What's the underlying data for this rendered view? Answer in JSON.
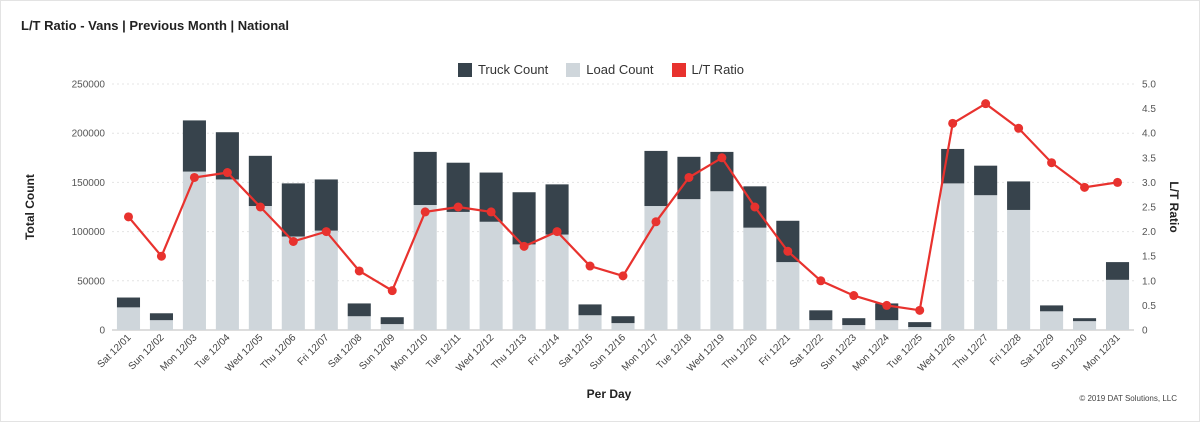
{
  "title": "L/T Ratio - Vans | Previous Month | National",
  "credit": "© 2019 DAT Solutions, LLC",
  "colors": {
    "truck": "#37434c",
    "load": "#cfd6db",
    "ratio": "#e8322e"
  },
  "chart_data": {
    "type": "bar",
    "stacked": true,
    "xlabel": "Per Day",
    "ylabel": "Total Count",
    "y2label": "L/T Ratio",
    "ylim": [
      0,
      250000
    ],
    "y2lim": [
      0,
      5
    ],
    "yticks": [
      "0",
      "50000",
      "100000",
      "150000",
      "200000",
      "250000"
    ],
    "y2ticks": [
      "0",
      "0.5",
      "1.0",
      "1.5",
      "2.0",
      "2.5",
      "3.0",
      "3.5",
      "4.0",
      "4.5",
      "5.0"
    ],
    "legend_position": "top-center",
    "grid": true,
    "categories": [
      "Sat 12/01",
      "Sun 12/02",
      "Mon 12/03",
      "Tue 12/04",
      "Wed 12/05",
      "Thu 12/06",
      "Fri 12/07",
      "Sat 12/08",
      "Sun 12/09",
      "Mon 12/10",
      "Tue 12/11",
      "Wed 12/12",
      "Thu 12/13",
      "Fri 12/14",
      "Sat 12/15",
      "Sun 12/16",
      "Mon 12/17",
      "Tue 12/18",
      "Wed 12/19",
      "Thu 12/20",
      "Fri 12/21",
      "Sat 12/22",
      "Sun 12/23",
      "Mon 12/24",
      "Tue 12/25",
      "Wed 12/26",
      "Thu 12/27",
      "Fri 12/28",
      "Sat 12/29",
      "Sun 12/30",
      "Mon 12/31"
    ],
    "series": [
      {
        "name": "Load Count",
        "type": "bar",
        "values": [
          23000,
          10000,
          161000,
          153000,
          126000,
          95000,
          101000,
          14000,
          6000,
          127000,
          120000,
          110000,
          87000,
          97000,
          15000,
          7000,
          126000,
          133000,
          141000,
          104000,
          69000,
          10000,
          5000,
          10000,
          3000,
          149000,
          137000,
          122000,
          19000,
          9000,
          51000
        ]
      },
      {
        "name": "Truck Count",
        "type": "bar",
        "values": [
          10000,
          7000,
          52000,
          48000,
          51000,
          54000,
          52000,
          13000,
          7000,
          54000,
          50000,
          50000,
          53000,
          51000,
          11000,
          7000,
          56000,
          43000,
          40000,
          42000,
          42000,
          10000,
          7000,
          17000,
          5000,
          35000,
          30000,
          29000,
          6000,
          3000,
          18000
        ]
      },
      {
        "name": "L/T Ratio",
        "type": "line",
        "axis": "right",
        "values": [
          2.3,
          1.5,
          3.1,
          3.2,
          2.5,
          1.8,
          2.0,
          1.2,
          0.8,
          2.4,
          2.5,
          2.4,
          1.7,
          2.0,
          1.3,
          1.1,
          2.2,
          3.1,
          3.5,
          2.5,
          1.6,
          1.0,
          0.7,
          0.5,
          0.4,
          4.2,
          4.6,
          4.1,
          3.4,
          2.9,
          3.0
        ]
      }
    ]
  }
}
